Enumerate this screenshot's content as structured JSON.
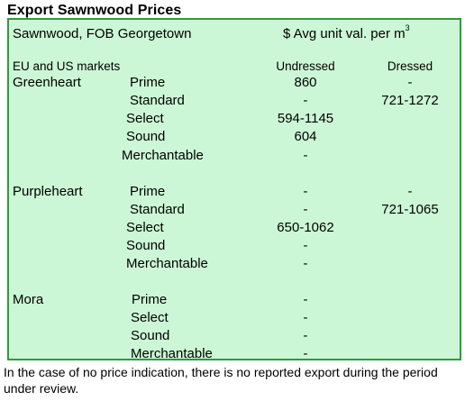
{
  "title": "Export Sawnwood Prices",
  "header": {
    "product": "Sawnwood, FOB Georgetown",
    "unit_label": "$ Avg unit val. per m",
    "unit_sup": "3"
  },
  "columns": {
    "market": "EU and US markets",
    "undressed": "Undressed",
    "dressed": "Dressed"
  },
  "species": [
    {
      "name": "Greenheart",
      "rows": [
        {
          "grade": "Prime",
          "undressed": "860",
          "dressed": "-"
        },
        {
          "grade": "Standard",
          "undressed": "-",
          "dressed": "721-1272"
        },
        {
          "grade": "Select",
          "undressed": "594-1145",
          "dressed": ""
        },
        {
          "grade": "Sound",
          "undressed": "604",
          "dressed": ""
        },
        {
          "grade": "Merchantable",
          "undressed": "-",
          "dressed": ""
        }
      ]
    },
    {
      "name": "Purpleheart",
      "rows": [
        {
          "grade": "Prime",
          "undressed": "-",
          "dressed": "-"
        },
        {
          "grade": "Standard",
          "undressed": "-",
          "dressed": "721-1065"
        },
        {
          "grade": "Select",
          "undressed": "650-1062",
          "dressed": ""
        },
        {
          "grade": "Sound",
          "undressed": "-",
          "dressed": ""
        },
        {
          "grade": "Merchantable",
          "undressed": "-",
          "dressed": ""
        }
      ]
    },
    {
      "name": "Mora",
      "rows": [
        {
          "grade": "Prime",
          "undressed": "-",
          "dressed": ""
        },
        {
          "grade": "Select",
          "undressed": "-",
          "dressed": ""
        },
        {
          "grade": "Sound",
          "undressed": "-",
          "dressed": ""
        },
        {
          "grade": "Merchantable",
          "undressed": "-",
          "dressed": ""
        }
      ]
    }
  ],
  "footnote": "In the case of no price indication, there is no reported export during the period under review.",
  "colors": {
    "panel_bg": "#ccf7d6",
    "panel_border": "#2f9a3c"
  }
}
